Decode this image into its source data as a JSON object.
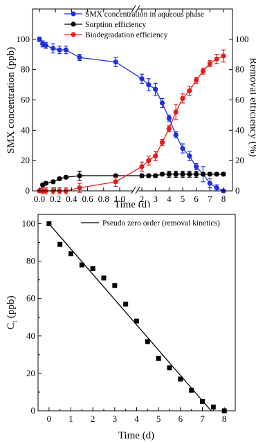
{
  "chart_data": [
    {
      "type": "line",
      "xlabel": "Time (d)",
      "ylabel_left": "SMX concentration (ppb)",
      "ylabel_right": "Removal efficiency (%)",
      "x_segments": [
        {
          "range": [
            0,
            1.0
          ],
          "ticks": [
            "0.0",
            "0.2",
            "0.4",
            "0.6",
            "0.8",
            "1.0"
          ],
          "tick_values": [
            0,
            0.2,
            0.4,
            0.6,
            0.8,
            1.0
          ]
        },
        {
          "range": [
            1.5,
            8
          ],
          "ticks": [
            "2",
            "3",
            "4",
            "5",
            "6",
            "7",
            "8"
          ],
          "tick_values": [
            2,
            3,
            4,
            5,
            6,
            7,
            8
          ]
        }
      ],
      "axis_break": "double slash on x-axis between 1.0 and 2",
      "ylim_left": [
        0,
        120
      ],
      "yticks_left": [
        "0",
        "20",
        "40",
        "60",
        "80",
        "100"
      ],
      "ylim_right": [
        0,
        120
      ],
      "yticks_right": [
        "0",
        "20",
        "40",
        "60",
        "80",
        "100"
      ],
      "legend_position": "top-right",
      "series": [
        {
          "name": "SMX concentration in aqueous phase",
          "color": "#1f2fe0",
          "axis": "left",
          "x": [
            0.0,
            0.04,
            0.08,
            0.17,
            0.25,
            0.33,
            0.5,
            0.95,
            2.0,
            2.5,
            3.0,
            3.5,
            4.0,
            4.5,
            5.0,
            5.5,
            6.0,
            6.5,
            7.0,
            7.5,
            8.0
          ],
          "y": [
            100,
            97,
            96,
            94,
            93,
            93,
            88,
            85,
            74,
            70,
            67,
            58,
            48,
            37,
            28,
            23,
            16,
            11,
            5,
            2,
            0
          ],
          "err": [
            1.5,
            2,
            2,
            3,
            2.5,
            2.5,
            2,
            3,
            3,
            4,
            4,
            3,
            2,
            2,
            3,
            3,
            2,
            5,
            3,
            2,
            1
          ]
        },
        {
          "name": "Sorption efficiency",
          "color": "#000000",
          "axis": "right",
          "x": [
            0.0,
            0.04,
            0.08,
            0.17,
            0.25,
            0.33,
            0.5,
            0.95,
            2.0,
            2.5,
            3.0,
            3.5,
            4.0,
            4.5,
            5.0,
            5.5,
            6.0,
            6.5,
            7.0,
            7.5,
            8.0
          ],
          "y": [
            0,
            4,
            5,
            6,
            8,
            9,
            10,
            10,
            10,
            10,
            10,
            11,
            11,
            11,
            11,
            11,
            11,
            11,
            11,
            11,
            11
          ],
          "err": [
            0.5,
            1,
            1,
            1,
            1,
            1,
            3,
            1,
            1,
            1,
            1,
            1,
            2,
            2,
            2,
            2,
            2,
            1,
            1,
            1,
            1
          ]
        },
        {
          "name": "Biodegradation efficiency",
          "color": "#e41b1b",
          "axis": "right",
          "x": [
            0.0,
            0.04,
            0.08,
            0.17,
            0.25,
            0.33,
            0.5,
            0.95,
            2.0,
            2.5,
            3.0,
            3.5,
            4.0,
            4.5,
            5.0,
            5.5,
            6.0,
            6.5,
            7.0,
            7.5,
            8.0
          ],
          "y": [
            0,
            0,
            0,
            0,
            0,
            0,
            2,
            6,
            16,
            20,
            23,
            32,
            41,
            52,
            61,
            66,
            73,
            79,
            84,
            87,
            89
          ],
          "err": [
            0.5,
            2,
            2,
            2,
            2,
            2,
            3,
            3,
            3,
            3,
            3,
            2,
            2,
            5,
            3,
            3,
            2,
            2,
            2,
            3,
            4
          ]
        }
      ]
    },
    {
      "type": "scatter",
      "xlabel": "Time (d)",
      "ylabel_main": "C",
      "ylabel_sub": "t",
      "ylabel_unit": " (ppb)",
      "xlim": [
        -0.5,
        8.5
      ],
      "xticks": [
        "0",
        "1",
        "2",
        "3",
        "4",
        "5",
        "6",
        "7",
        "8"
      ],
      "xtick_values": [
        0,
        1,
        2,
        3,
        4,
        5,
        6,
        7,
        8
      ],
      "ylim": [
        0,
        105
      ],
      "yticks": [
        "0",
        "20",
        "40",
        "60",
        "80",
        "100"
      ],
      "legend_position": "top-right",
      "fit_line": {
        "name": "Pseudo zero order (removal kinetics)",
        "x": [
          0,
          7.4
        ],
        "y": [
          100,
          0
        ]
      },
      "points": {
        "x": [
          0,
          0.5,
          1,
          1.5,
          2,
          2.5,
          3,
          3.5,
          4,
          4.5,
          5,
          5.5,
          6,
          6.5,
          7,
          7.5,
          8
        ],
        "y": [
          100,
          89,
          84,
          78,
          76,
          71,
          67,
          57,
          48,
          37,
          28,
          23,
          17,
          11,
          5,
          2,
          0
        ]
      }
    }
  ]
}
